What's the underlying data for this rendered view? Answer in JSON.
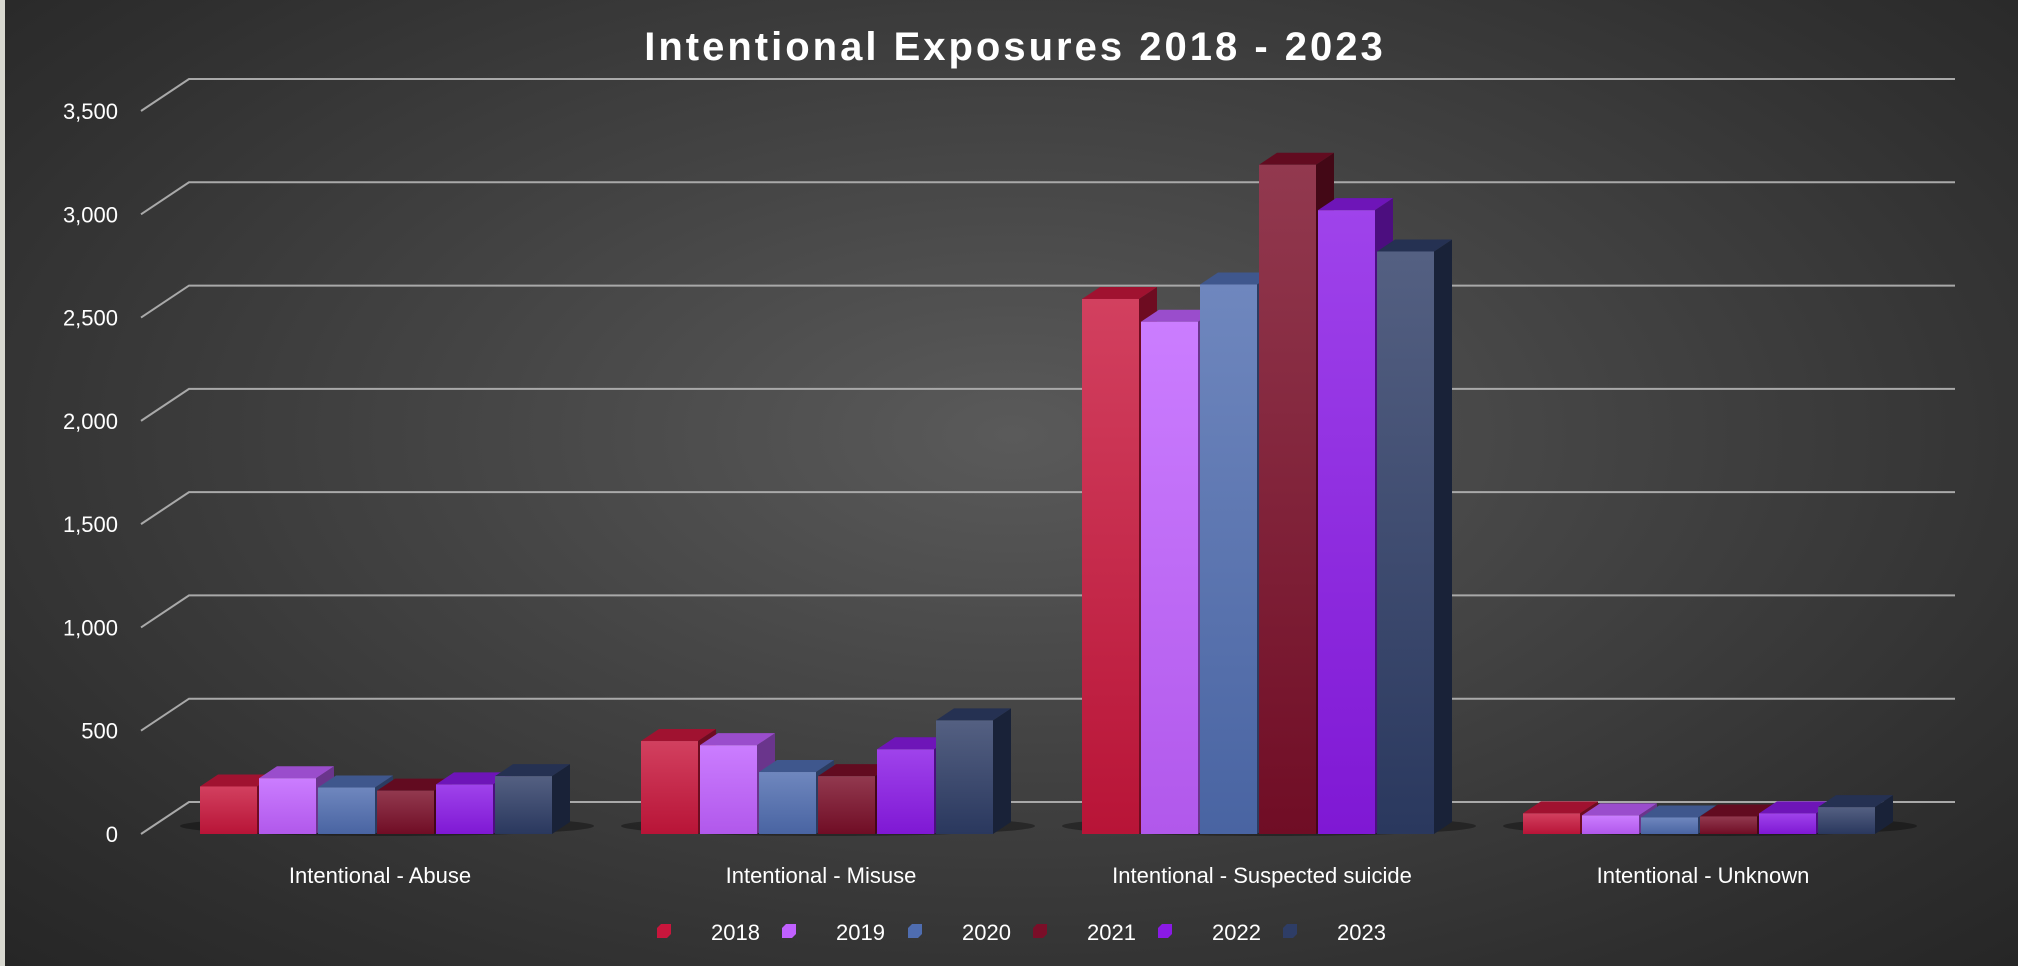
{
  "chart_data": {
    "type": "bar",
    "title": "Intentional Exposures 2018 - 2023",
    "xlabel": "",
    "ylabel": "",
    "ylim": [
      0,
      3500
    ],
    "y_ticks": [
      "0",
      "500",
      "1,000",
      "1,500",
      "2,000",
      "2,500",
      "3,000",
      "3,500"
    ],
    "grid": true,
    "legend_position": "bottom",
    "categories": [
      "Intentional - Abuse",
      "Intentional - Misuse",
      "Intentional - Suspected suicide",
      "Intentional - Unknown"
    ],
    "series": [
      {
        "name": "2018",
        "color": "#c8163c",
        "values": [
          230,
          450,
          2590,
          100
        ]
      },
      {
        "name": "2019",
        "color": "#c060ff",
        "values": [
          270,
          430,
          2480,
          90
        ]
      },
      {
        "name": "2020",
        "color": "#4f6db0",
        "values": [
          225,
          300,
          2660,
          80
        ]
      },
      {
        "name": "2021",
        "color": "#7a0e28",
        "values": [
          210,
          280,
          3240,
          85
        ]
      },
      {
        "name": "2022",
        "color": "#8a1ae6",
        "values": [
          240,
          410,
          3020,
          100
        ]
      },
      {
        "name": "2023",
        "color": "#2e3d66",
        "values": [
          280,
          550,
          2820,
          130
        ]
      }
    ]
  }
}
